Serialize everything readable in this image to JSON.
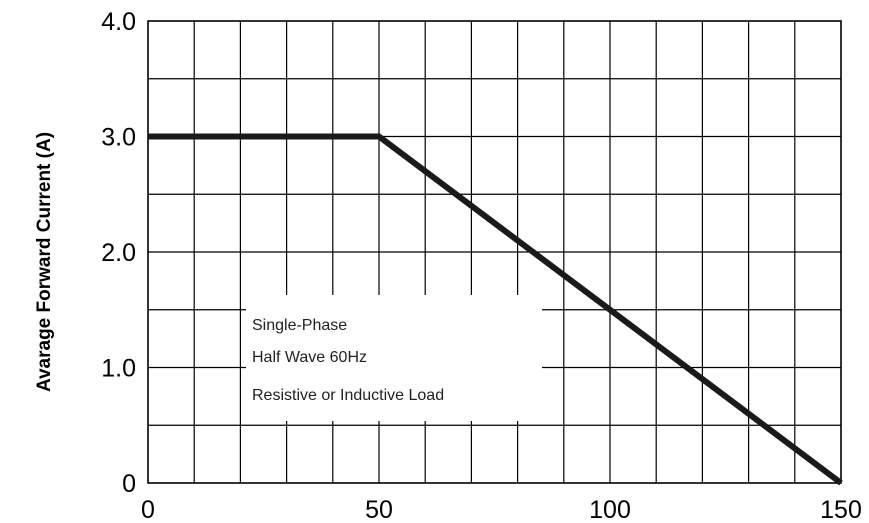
{
  "chart_data": {
    "type": "line",
    "ylabel": "Avarage Forward Current (A)",
    "xlabel": "",
    "title": "",
    "xlim": [
      0,
      150
    ],
    "ylim": [
      0,
      4.0
    ],
    "x_ticks": [
      0,
      50,
      100,
      150
    ],
    "x_tick_labels": [
      "0",
      "50",
      "100",
      "150"
    ],
    "y_ticks": [
      0,
      1.0,
      2.0,
      3.0,
      4.0
    ],
    "y_tick_labels": [
      "0",
      "1.0",
      "2.0",
      "3.0",
      "4.0"
    ],
    "grid": true,
    "x_grid_step": 10,
    "y_grid_step": 0.5,
    "series": [
      {
        "x": [
          0,
          50,
          150
        ],
        "y": [
          3.0,
          3.0,
          0
        ]
      }
    ],
    "annotation": {
      "lines": [
        "Single-Phase",
        "Half Wave 60Hz",
        "Resistive or Inductive Load"
      ]
    },
    "colors": {
      "line": "#1a1a1a",
      "grid": "#000000",
      "background": "#ffffff"
    }
  }
}
